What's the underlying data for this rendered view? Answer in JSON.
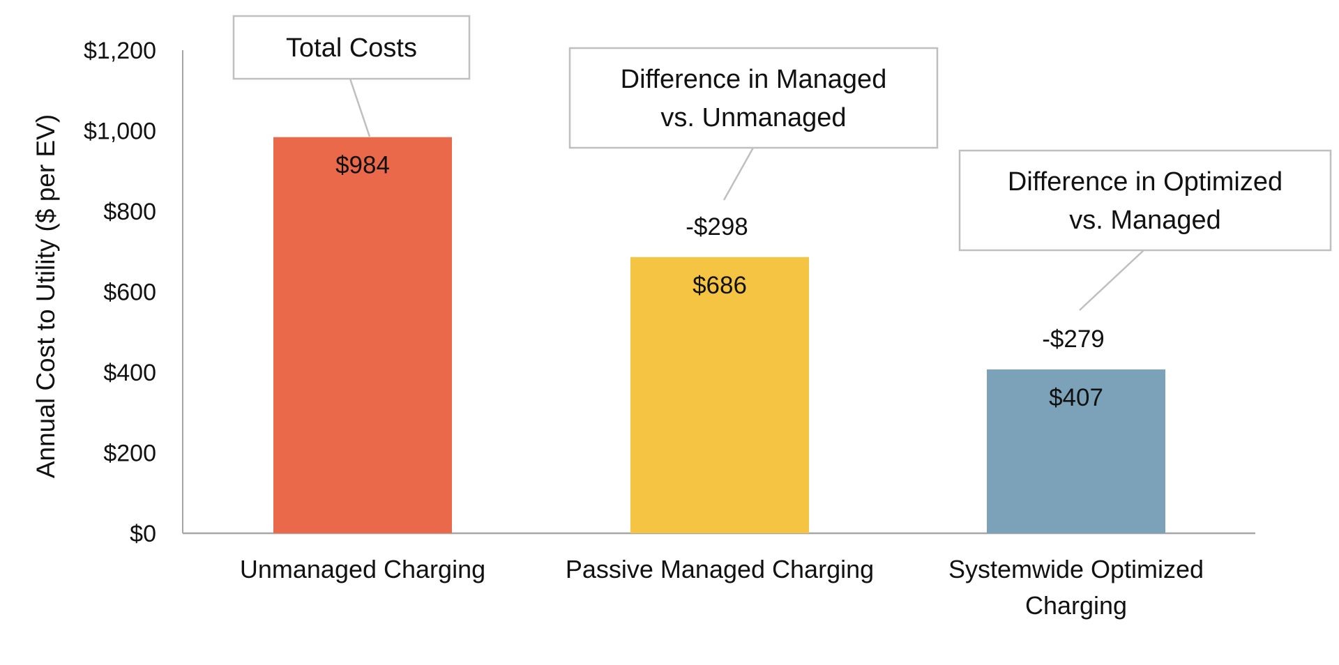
{
  "chart_data": {
    "type": "bar",
    "title": "",
    "xlabel": "",
    "ylabel": "Annual Cost to Utility ($ per EV)",
    "ylim": [
      0,
      1200
    ],
    "yticks": [
      0,
      200,
      400,
      600,
      800,
      1000,
      1200
    ],
    "ytick_labels": [
      "$0",
      "$200",
      "$400",
      "$600",
      "$800",
      "$1,000",
      "$1,200"
    ],
    "categories": [
      [
        "Unmanaged Charging"
      ],
      [
        "Passive Managed Charging"
      ],
      [
        "Systemwide Optimized",
        "Charging"
      ]
    ],
    "values": [
      984,
      686,
      407
    ],
    "value_labels": [
      "$984",
      "$686",
      "$407"
    ],
    "colors": [
      "#E9694A",
      "#F5C443",
      "#7BA2B8"
    ],
    "difference_labels": [
      "",
      "-$298",
      "-$279"
    ],
    "callouts": [
      {
        "lines": [
          "Total Costs"
        ]
      },
      {
        "lines": [
          "Difference in Managed",
          "vs. Unmanaged"
        ]
      },
      {
        "lines": [
          "Difference in Optimized",
          "vs. Managed"
        ]
      }
    ],
    "grid": false,
    "legend": "none"
  }
}
